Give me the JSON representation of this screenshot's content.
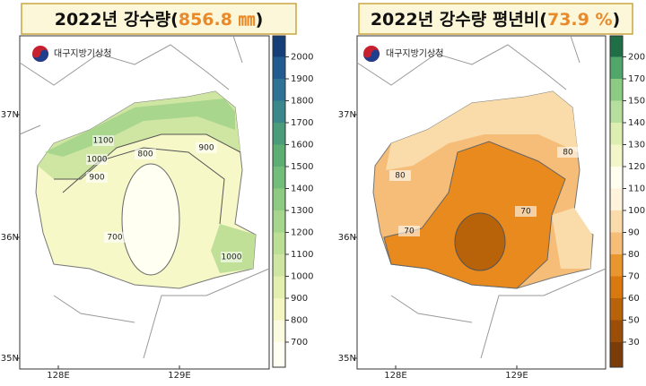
{
  "left": {
    "title_main": "2022년 강수량(",
    "title_value": "856.8 ㎜",
    "title_close": ")",
    "logo_text": "대구지방기상청",
    "legend_ticks": [
      700,
      800,
      900,
      1000,
      1100,
      1200,
      1300,
      1400,
      1500,
      1600,
      1700,
      1800,
      1900,
      2000
    ],
    "lat_labels": [
      "37N",
      "36N",
      "35N"
    ],
    "lon_labels": [
      "128E",
      "129E"
    ],
    "contour_labels": [
      "1100",
      "1000",
      "900",
      "800",
      "900",
      "700",
      "1000"
    ]
  },
  "right": {
    "title_main": "2022년 강수량 평년비(",
    "title_value": "73.9 %",
    "title_close": ")",
    "logo_text": "대구지방기상청",
    "legend_ticks": [
      30,
      50,
      60,
      70,
      80,
      90,
      100,
      110,
      120,
      130,
      140,
      150,
      170,
      200
    ],
    "lat_labels": [
      "37N",
      "36N",
      "35N"
    ],
    "lon_labels": [
      "128E",
      "129E"
    ],
    "contour_labels": [
      "80",
      "80",
      "70",
      "70"
    ]
  }
}
